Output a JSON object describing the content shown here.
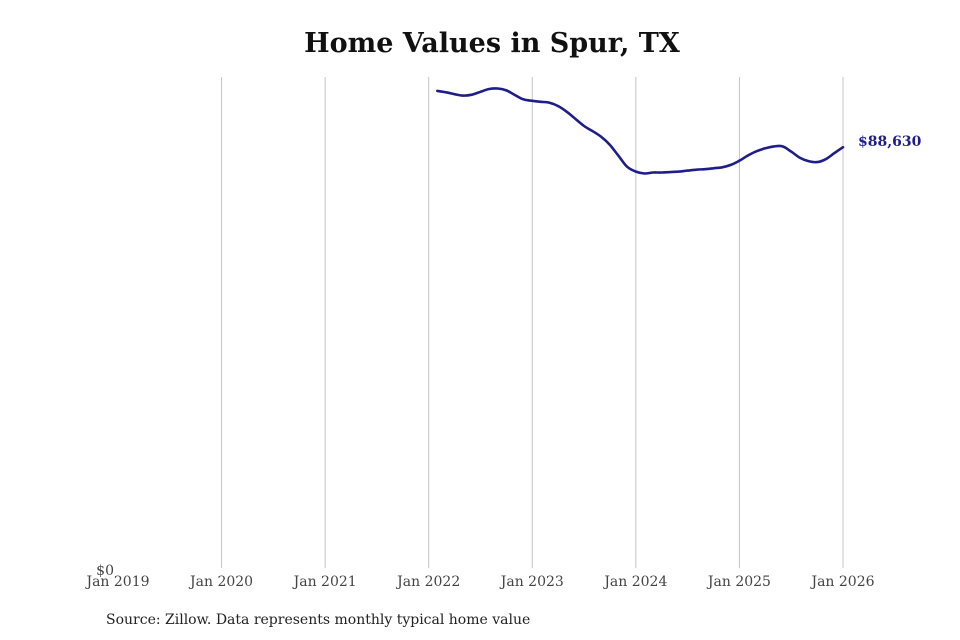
{
  "chart_data": {
    "type": "line",
    "title": "Home Values in Spur, TX",
    "source": "Source: Zillow. Data represents monthly typical home value",
    "x_ticks": [
      "Jan 2019",
      "Jan 2020",
      "Jan 2021",
      "Jan 2022",
      "Jan 2023",
      "Jan 2024",
      "Jan 2025",
      "Jan 2026"
    ],
    "y_ticks": [
      "$0"
    ],
    "ylim": [
      0,
      103000
    ],
    "grid": "vertical",
    "series": [
      {
        "color": "#1f1d8a",
        "end_label": "$88,630",
        "x": [
          "2022-02",
          "2022-03",
          "2022-04",
          "2022-05",
          "2022-06",
          "2022-07",
          "2022-08",
          "2022-09",
          "2022-10",
          "2022-11",
          "2022-12",
          "2023-01",
          "2023-02",
          "2023-03",
          "2023-04",
          "2023-05",
          "2023-06",
          "2023-07",
          "2023-08",
          "2023-09",
          "2023-10",
          "2023-11",
          "2023-12",
          "2024-01",
          "2024-02",
          "2024-03",
          "2024-04",
          "2024-05",
          "2024-06",
          "2024-07",
          "2024-08",
          "2024-09",
          "2024-10",
          "2024-11",
          "2024-12",
          "2025-01",
          "2025-02",
          "2025-03",
          "2025-04",
          "2025-05",
          "2025-06",
          "2025-07",
          "2025-08",
          "2025-09",
          "2025-10",
          "2025-11",
          "2025-12",
          "2026-01"
        ],
        "y": [
          100500,
          100200,
          99800,
          99500,
          99700,
          100300,
          100900,
          101000,
          100600,
          99600,
          98700,
          98400,
          98200,
          98000,
          97300,
          96100,
          94600,
          93100,
          92000,
          90800,
          89100,
          86800,
          84500,
          83500,
          83100,
          83300,
          83300,
          83400,
          83500,
          83700,
          83900,
          84000,
          84200,
          84400,
          84900,
          85800,
          86900,
          87800,
          88400,
          88800,
          88800,
          87700,
          86400,
          85700,
          85500,
          86100,
          87400,
          88630
        ]
      }
    ]
  }
}
